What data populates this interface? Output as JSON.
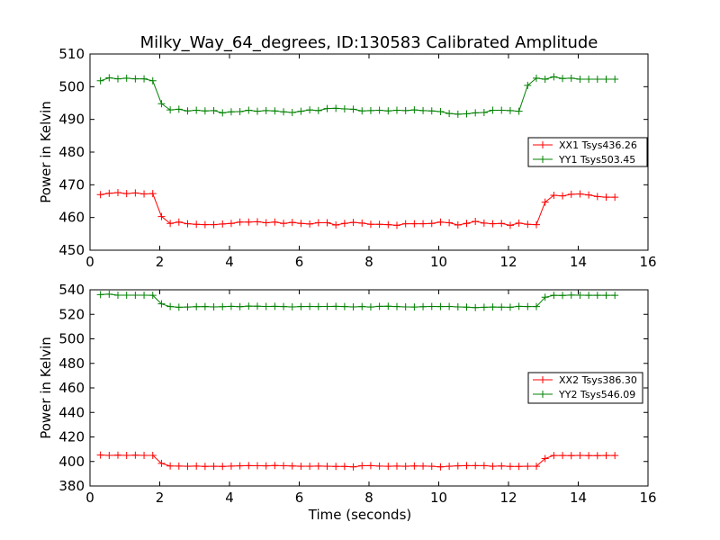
{
  "title": "Milky_Way_64_degrees, ID:130583 Calibrated Amplitude",
  "chart_data": [
    {
      "type": "line",
      "ylabel": "Power in Kelvin",
      "xlabel": "",
      "xlim": [
        0,
        16
      ],
      "ylim": [
        450,
        510
      ],
      "xticks": [
        "0",
        "2",
        "4",
        "6",
        "8",
        "10",
        "12",
        "14",
        "16"
      ],
      "yticks": [
        "450",
        "460",
        "470",
        "480",
        "490",
        "500",
        "510"
      ],
      "legend_position": "center-right",
      "x": [
        0.3,
        0.55,
        0.8,
        1.05,
        1.3,
        1.55,
        1.8,
        2.05,
        2.3,
        2.55,
        2.8,
        3.05,
        3.3,
        3.55,
        3.8,
        4.05,
        4.3,
        4.55,
        4.8,
        5.05,
        5.3,
        5.55,
        5.8,
        6.05,
        6.3,
        6.55,
        6.8,
        7.05,
        7.3,
        7.55,
        7.8,
        8.05,
        8.3,
        8.55,
        8.8,
        9.05,
        9.3,
        9.55,
        9.8,
        10.05,
        10.3,
        10.55,
        10.8,
        11.05,
        11.3,
        11.55,
        11.8,
        12.05,
        12.3,
        12.55,
        12.8,
        13.05,
        13.3,
        13.55,
        13.8,
        14.05,
        14.3,
        14.55,
        14.8,
        15.05
      ],
      "series": [
        {
          "name": "XX1 Tsys436.26",
          "color": "#ff0000",
          "values": [
            467.0,
            467.4,
            467.6,
            467.3,
            467.5,
            467.2,
            467.3,
            460.3,
            458.2,
            458.6,
            458.1,
            457.9,
            457.8,
            457.8,
            458.0,
            458.2,
            458.6,
            458.6,
            458.7,
            458.4,
            458.6,
            458.2,
            458.5,
            458.2,
            458.0,
            458.4,
            458.4,
            457.7,
            458.2,
            458.5,
            458.3,
            457.9,
            457.9,
            457.8,
            457.6,
            458.1,
            458.1,
            458.1,
            458.2,
            458.6,
            458.4,
            457.7,
            458.2,
            458.8,
            458.3,
            458.1,
            458.2,
            457.6,
            458.3,
            457.9,
            457.8,
            464.7,
            466.8,
            466.6,
            467.1,
            467.2,
            466.9,
            466.4,
            466.2,
            466.2
          ],
          "marker": "+"
        },
        {
          "name": "YY1 Tsys503.45",
          "color": "#008000",
          "values": [
            501.8,
            502.7,
            502.4,
            502.6,
            502.4,
            502.4,
            501.8,
            494.8,
            492.9,
            493.1,
            492.6,
            492.8,
            492.6,
            492.7,
            492.0,
            492.3,
            492.4,
            492.8,
            492.5,
            492.7,
            492.6,
            492.3,
            492.1,
            492.5,
            492.9,
            492.7,
            493.3,
            493.4,
            493.2,
            493.1,
            492.6,
            492.7,
            492.8,
            492.6,
            492.8,
            492.7,
            492.9,
            492.7,
            492.6,
            492.4,
            491.8,
            491.6,
            491.7,
            492.0,
            492.1,
            492.8,
            492.8,
            492.7,
            492.5,
            500.4,
            502.6,
            502.3,
            503.0,
            502.5,
            502.6,
            502.3,
            502.3,
            502.3,
            502.3,
            502.3
          ],
          "marker": "+"
        }
      ]
    },
    {
      "type": "line",
      "ylabel": "Power in Kelvin",
      "xlabel": "Time (seconds)",
      "xlim": [
        0,
        16
      ],
      "ylim": [
        380,
        540
      ],
      "xticks": [
        "0",
        "2",
        "4",
        "6",
        "8",
        "10",
        "12",
        "14",
        "16"
      ],
      "yticks": [
        "380",
        "400",
        "420",
        "440",
        "460",
        "480",
        "500",
        "520",
        "540"
      ],
      "legend_position": "center-right",
      "x": [
        0.3,
        0.55,
        0.8,
        1.05,
        1.3,
        1.55,
        1.8,
        2.05,
        2.3,
        2.55,
        2.8,
        3.05,
        3.3,
        3.55,
        3.8,
        4.05,
        4.3,
        4.55,
        4.8,
        5.05,
        5.3,
        5.55,
        5.8,
        6.05,
        6.3,
        6.55,
        6.8,
        7.05,
        7.3,
        7.55,
        7.8,
        8.05,
        8.3,
        8.55,
        8.8,
        9.05,
        9.3,
        9.55,
        9.8,
        10.05,
        10.3,
        10.55,
        10.8,
        11.05,
        11.3,
        11.55,
        11.8,
        12.05,
        12.3,
        12.55,
        12.8,
        13.05,
        13.3,
        13.55,
        13.8,
        14.05,
        14.3,
        14.55,
        14.8,
        15.05
      ],
      "series": [
        {
          "name": "XX2 Tsys386.30",
          "color": "#ff0000",
          "values": [
            405.2,
            405.0,
            405.1,
            405.0,
            405.1,
            405.0,
            405.0,
            398.4,
            396.3,
            396.2,
            396.1,
            396.2,
            396.0,
            396.1,
            396.0,
            396.2,
            396.4,
            396.6,
            396.5,
            396.4,
            396.7,
            396.5,
            396.3,
            396.1,
            396.1,
            396.2,
            396.1,
            396.0,
            396.0,
            395.6,
            396.5,
            396.6,
            396.2,
            396.1,
            396.2,
            396.1,
            396.3,
            396.2,
            396.1,
            395.6,
            396.1,
            396.4,
            396.6,
            396.6,
            396.6,
            396.1,
            396.3,
            396.0,
            396.0,
            396.1,
            396.1,
            402.4,
            404.9,
            404.9,
            404.8,
            405.0,
            404.8,
            404.8,
            404.9,
            404.9
          ],
          "marker": "+"
        },
        {
          "name": "YY2 Tsys546.09",
          "color": "#008000",
          "values": [
            536.1,
            536.4,
            535.6,
            535.6,
            535.6,
            535.6,
            535.5,
            528.5,
            526.3,
            525.8,
            526.0,
            526.2,
            526.3,
            526.1,
            526.2,
            526.5,
            526.2,
            526.7,
            526.6,
            526.4,
            526.5,
            526.3,
            526.1,
            526.3,
            526.4,
            526.3,
            526.4,
            526.5,
            526.3,
            526.1,
            526.3,
            526.0,
            526.5,
            526.6,
            526.3,
            526.1,
            526.0,
            526.2,
            526.4,
            526.3,
            526.4,
            526.1,
            525.9,
            525.5,
            525.8,
            526.0,
            525.9,
            525.8,
            526.5,
            526.3,
            526.3,
            533.9,
            535.5,
            535.4,
            535.7,
            535.6,
            535.5,
            535.5,
            535.5,
            535.5
          ],
          "marker": "+"
        }
      ]
    }
  ]
}
